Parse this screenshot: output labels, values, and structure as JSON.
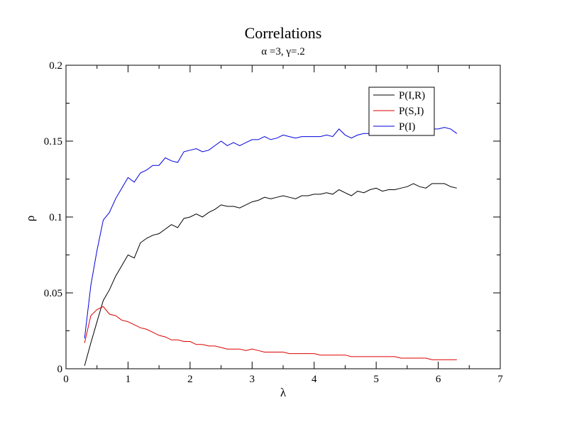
{
  "chart_data": {
    "type": "line",
    "title": "Correlations",
    "subtitle": "α =3, γ=.2",
    "xlabel": "λ",
    "ylabel": "ρ",
    "xlim": [
      0,
      7
    ],
    "ylim": [
      0,
      0.2
    ],
    "xticks": [
      "0",
      "1",
      "2",
      "3",
      "4",
      "5",
      "6",
      "7"
    ],
    "yticks": [
      "0",
      "0.05",
      "0.1",
      "0.15",
      "0.2"
    ],
    "grid": false,
    "legend_position": "top-right",
    "x": [
      0.3,
      0.4,
      0.5,
      0.6,
      0.7,
      0.8,
      0.9,
      1.0,
      1.1,
      1.2,
      1.3,
      1.4,
      1.5,
      1.6,
      1.7,
      1.8,
      1.9,
      2.0,
      2.1,
      2.2,
      2.3,
      2.4,
      2.5,
      2.6,
      2.7,
      2.8,
      2.9,
      3.0,
      3.1,
      3.2,
      3.3,
      3.4,
      3.5,
      3.6,
      3.7,
      3.8,
      3.9,
      4.0,
      4.1,
      4.2,
      4.3,
      4.4,
      4.5,
      4.6,
      4.7,
      4.8,
      4.9,
      5.0,
      5.1,
      5.2,
      5.3,
      5.4,
      5.5,
      5.6,
      5.7,
      5.8,
      5.9,
      6.0,
      6.1,
      6.2,
      6.3
    ],
    "series": [
      {
        "name": "P(I,R)",
        "color": "#000000",
        "values": [
          0.002,
          0.017,
          0.031,
          0.045,
          0.052,
          0.061,
          0.068,
          0.075,
          0.073,
          0.083,
          0.086,
          0.088,
          0.089,
          0.092,
          0.095,
          0.093,
          0.099,
          0.1,
          0.102,
          0.1,
          0.103,
          0.105,
          0.108,
          0.107,
          0.107,
          0.106,
          0.108,
          0.11,
          0.111,
          0.113,
          0.112,
          0.113,
          0.114,
          0.113,
          0.112,
          0.114,
          0.114,
          0.115,
          0.115,
          0.116,
          0.115,
          0.118,
          0.116,
          0.114,
          0.117,
          0.116,
          0.118,
          0.119,
          0.117,
          0.118,
          0.118,
          0.119,
          0.12,
          0.122,
          0.12,
          0.119,
          0.122,
          0.122,
          0.122,
          0.12,
          0.119
        ]
      },
      {
        "name": "P(S,I)",
        "color": "#dd0000",
        "values": [
          0.017,
          0.035,
          0.039,
          0.041,
          0.036,
          0.035,
          0.032,
          0.031,
          0.029,
          0.027,
          0.026,
          0.024,
          0.022,
          0.021,
          0.019,
          0.019,
          0.018,
          0.018,
          0.016,
          0.016,
          0.015,
          0.015,
          0.014,
          0.013,
          0.013,
          0.013,
          0.012,
          0.013,
          0.012,
          0.011,
          0.011,
          0.011,
          0.011,
          0.01,
          0.01,
          0.01,
          0.01,
          0.01,
          0.009,
          0.009,
          0.009,
          0.009,
          0.009,
          0.008,
          0.008,
          0.008,
          0.008,
          0.008,
          0.008,
          0.008,
          0.008,
          0.007,
          0.007,
          0.007,
          0.007,
          0.007,
          0.006,
          0.006,
          0.006,
          0.006,
          0.006
        ]
      },
      {
        "name": "P(I)",
        "color": "#0000dd",
        "values": [
          0.02,
          0.055,
          0.078,
          0.098,
          0.103,
          0.112,
          0.119,
          0.126,
          0.123,
          0.129,
          0.131,
          0.134,
          0.134,
          0.139,
          0.137,
          0.136,
          0.143,
          0.144,
          0.145,
          0.143,
          0.144,
          0.147,
          0.15,
          0.147,
          0.149,
          0.147,
          0.149,
          0.151,
          0.151,
          0.153,
          0.151,
          0.152,
          0.154,
          0.153,
          0.152,
          0.153,
          0.153,
          0.153,
          0.153,
          0.154,
          0.153,
          0.158,
          0.154,
          0.152,
          0.154,
          0.155,
          0.155,
          0.155,
          0.155,
          0.155,
          0.156,
          0.156,
          0.156,
          0.156,
          0.157,
          0.157,
          0.158,
          0.158,
          0.159,
          0.158,
          0.155
        ]
      }
    ]
  }
}
